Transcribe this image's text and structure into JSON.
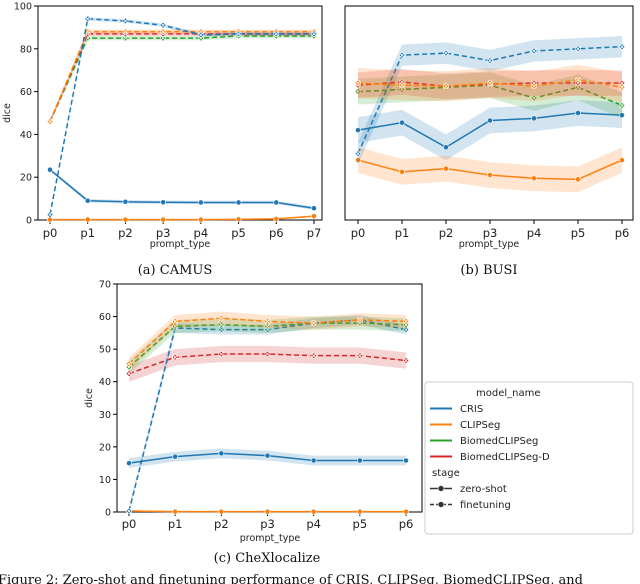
{
  "colors": {
    "CRIS": "#1f77b4",
    "CLIPSeg": "#ff7f0e",
    "BiomedCLIPSeg": "#2ca02c",
    "BiomedCLIPSeg-D": "#d62728"
  },
  "legend": {
    "title": "model_name",
    "models": [
      "CRIS",
      "CLIPSeg",
      "BiomedCLIPSeg",
      "BiomedCLIPSeg-D"
    ],
    "stage_title": "stage",
    "stages": [
      "zero-shot",
      "finetuning"
    ]
  },
  "figure_caption": "Figure 2: Zero-shot and finetuning performance of CRIS, CLIPSeg, BiomedCLIPSeg, and",
  "chart_data": [
    {
      "type": "line",
      "caption": "(a) CAMUS",
      "xlabel": "prompt_type",
      "ylabel": "dice",
      "categories": [
        "p0",
        "p1",
        "p2",
        "p3",
        "p4",
        "p5",
        "p6",
        "p7"
      ],
      "ylim": [
        0,
        100
      ],
      "yticks": [
        0,
        20,
        40,
        60,
        80,
        100
      ],
      "series": [
        {
          "model": "CRIS",
          "stage": "zero-shot",
          "values": [
            23.5,
            9,
            8.5,
            8.3,
            8.2,
            8.2,
            8.2,
            5.5
          ],
          "band": 0.8
        },
        {
          "model": "CLIPSeg",
          "stage": "zero-shot",
          "values": [
            0.2,
            0.2,
            0.2,
            0.2,
            0.2,
            0.3,
            0.5,
            1.8
          ],
          "band": 0.3
        },
        {
          "model": "BiomedCLIPSeg",
          "stage": "finetuning",
          "values": [
            46,
            85,
            85,
            85,
            85,
            86,
            86,
            86
          ],
          "band": 1
        },
        {
          "model": "BiomedCLIPSeg-D",
          "stage": "finetuning",
          "values": [
            46,
            87,
            87,
            87,
            87,
            87,
            87,
            87
          ],
          "band": 1
        },
        {
          "model": "CLIPSeg",
          "stage": "finetuning",
          "values": [
            46,
            88,
            88,
            88,
            88,
            88,
            88,
            88
          ],
          "band": 1
        },
        {
          "model": "CRIS",
          "stage": "finetuning",
          "values": [
            2.5,
            94,
            93,
            91,
            86.5,
            87,
            87,
            87
          ],
          "band": 0.8
        }
      ]
    },
    {
      "type": "line",
      "caption": "(b) BUSI",
      "xlabel": "prompt_type",
      "ylabel": "",
      "categories": [
        "p0",
        "p1",
        "p2",
        "p3",
        "p4",
        "p5",
        "p6"
      ],
      "ylim": [
        0,
        100
      ],
      "yticks": [],
      "series": [
        {
          "model": "CRIS",
          "stage": "zero-shot",
          "values": [
            42,
            45.5,
            34,
            46.5,
            47.5,
            50,
            49
          ],
          "band": 6
        },
        {
          "model": "CLIPSeg",
          "stage": "zero-shot",
          "values": [
            28,
            22.5,
            24,
            21,
            19.5,
            19,
            28
          ],
          "band": 6
        },
        {
          "model": "CRIS",
          "stage": "finetuning",
          "values": [
            31,
            77,
            78,
            74.5,
            79,
            80,
            81
          ],
          "band": 5
        },
        {
          "model": "BiomedCLIPSeg",
          "stage": "finetuning",
          "values": [
            60,
            61,
            62,
            63,
            57,
            62,
            53.5
          ],
          "band": 6
        },
        {
          "model": "BiomedCLIPSeg-D",
          "stage": "finetuning",
          "values": [
            63,
            64.5,
            62.5,
            63.5,
            64,
            64,
            64
          ],
          "band": 6
        },
        {
          "model": "CLIPSeg",
          "stage": "finetuning",
          "values": [
            64,
            63,
            62.5,
            64,
            62.5,
            65.5,
            62
          ],
          "band": 7
        }
      ]
    },
    {
      "type": "line",
      "caption": "(c) CheXlocalize",
      "xlabel": "prompt_type",
      "ylabel": "dice",
      "categories": [
        "p0",
        "p1",
        "p2",
        "p3",
        "p4",
        "p5",
        "p6"
      ],
      "ylim": [
        0,
        70
      ],
      "yticks": [
        0,
        10,
        20,
        30,
        40,
        50,
        60,
        70
      ],
      "series": [
        {
          "model": "CRIS",
          "stage": "zero-shot",
          "values": [
            15,
            17,
            18,
            17.3,
            15.8,
            15.8,
            15.8
          ],
          "band": 1.5
        },
        {
          "model": "CLIPSeg",
          "stage": "zero-shot",
          "values": [
            0.3,
            0.1,
            0.1,
            0.1,
            0.1,
            0.1,
            0.1
          ],
          "band": 0.2
        },
        {
          "model": "BiomedCLIPSeg-D",
          "stage": "finetuning",
          "values": [
            42.5,
            47.5,
            48.5,
            48.5,
            48,
            48,
            46.5
          ],
          "band": 2.5
        },
        {
          "model": "CRIS",
          "stage": "finetuning",
          "values": [
            0.3,
            56.5,
            56,
            56,
            58,
            59,
            56
          ],
          "band": 1.5
        },
        {
          "model": "BiomedCLIPSeg",
          "stage": "finetuning",
          "values": [
            44.5,
            57,
            57.5,
            57,
            58,
            58,
            57.5
          ],
          "band": 2
        },
        {
          "model": "CLIPSeg",
          "stage": "finetuning",
          "values": [
            45.5,
            58.5,
            59.5,
            58.5,
            58,
            59,
            58.5
          ],
          "band": 2
        }
      ]
    }
  ]
}
